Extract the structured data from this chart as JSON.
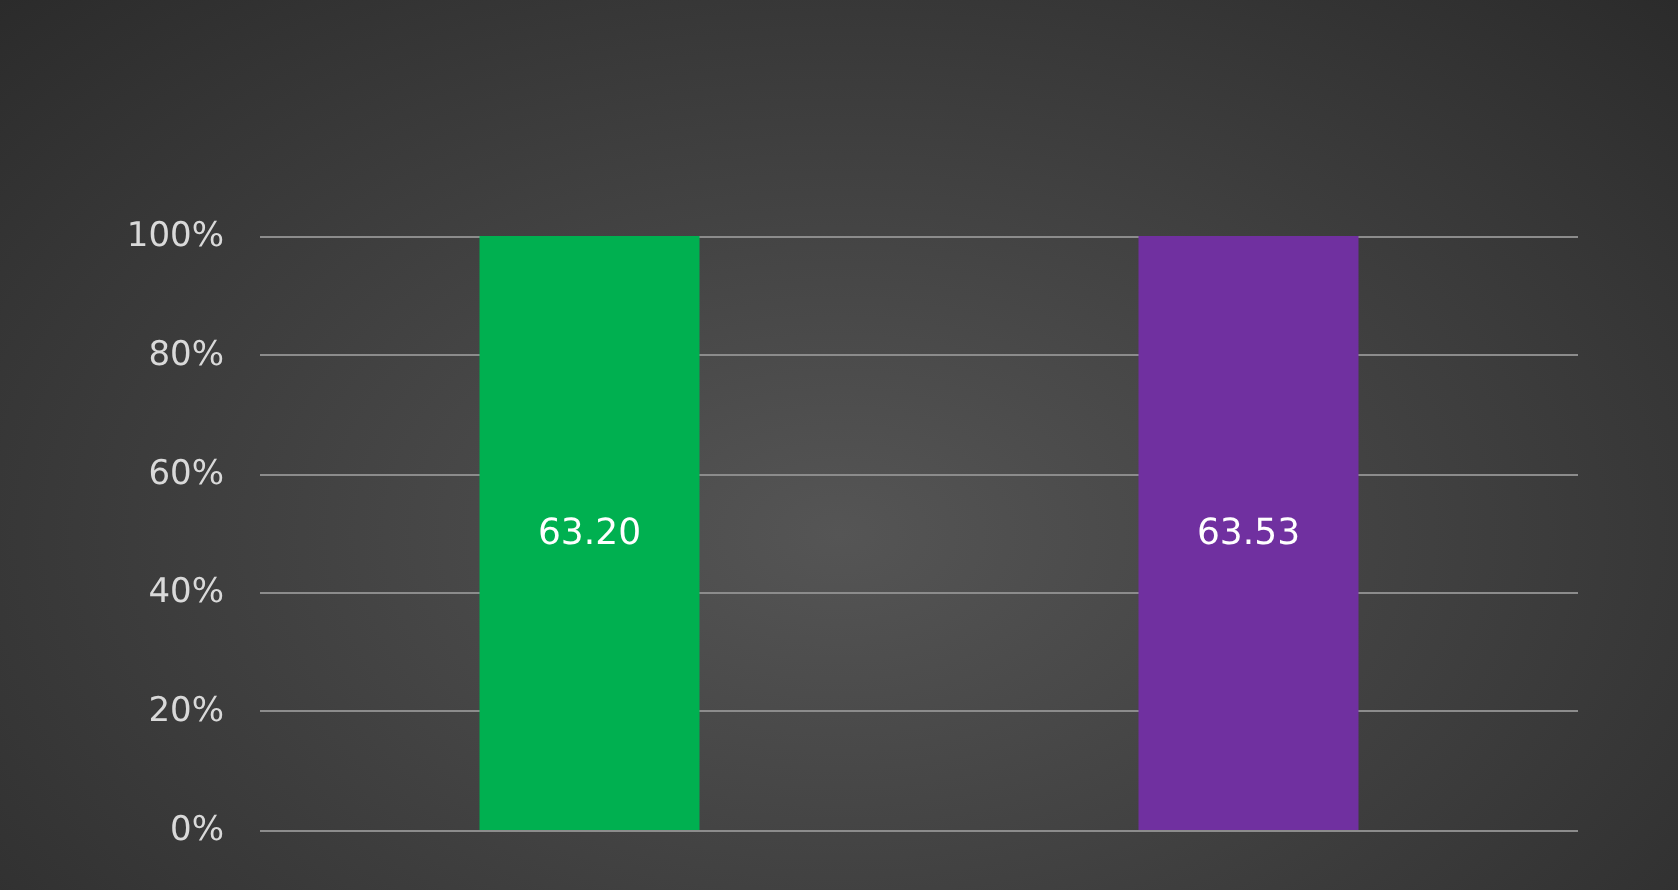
{
  "chart_data": {
    "type": "bar",
    "categories": [
      null,
      null
    ],
    "values": [
      100,
      100
    ],
    "colors": [
      "#00b050",
      "#7030a0"
    ],
    "annotations": [
      "63.20",
      "63.53"
    ],
    "ylim": [
      0,
      100
    ],
    "yticks": [
      {
        "value": 0,
        "label": "0%"
      },
      {
        "value": 20,
        "label": "20%"
      },
      {
        "value": 40,
        "label": "40%"
      },
      {
        "value": 60,
        "label": "60%"
      },
      {
        "value": 80,
        "label": "80%"
      },
      {
        "value": 100,
        "label": "100%"
      }
    ],
    "grid": "y"
  }
}
